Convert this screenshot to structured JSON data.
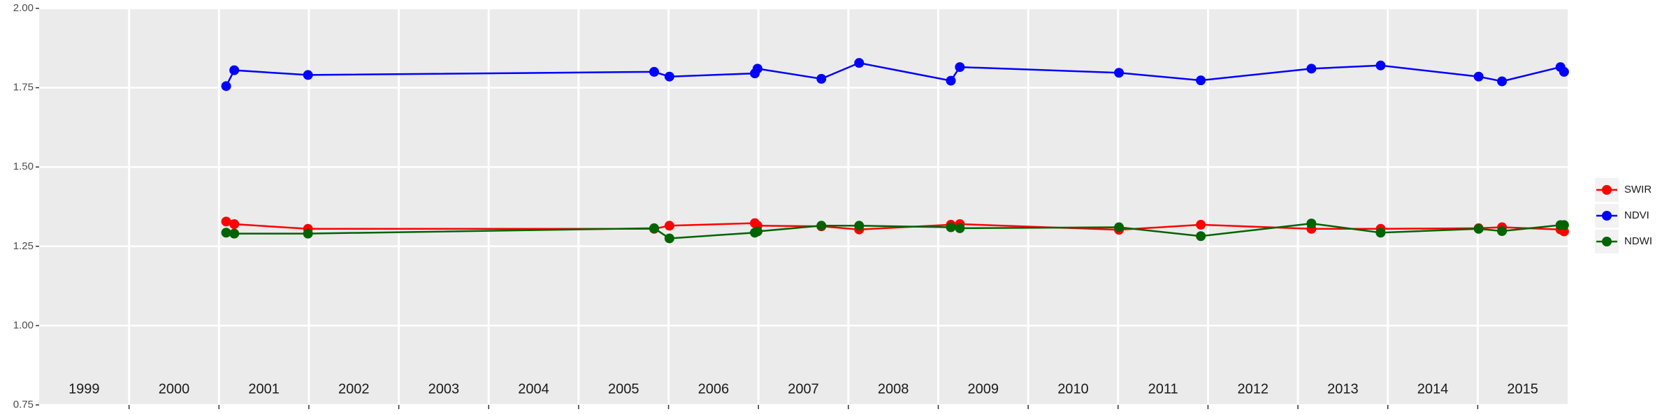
{
  "chart_data": {
    "type": "line",
    "x": [
      2001.08,
      2001.17,
      2001.99,
      2005.84,
      2006.01,
      2006.96,
      2006.99,
      2007.7,
      2008.12,
      2009.14,
      2009.24,
      2011.01,
      2011.92,
      2013.15,
      2013.92,
      2015.01,
      2015.27,
      2015.92,
      2015.96
    ],
    "series": [
      {
        "name": "SWIR",
        "color": "#ff0000",
        "values": [
          1.328,
          1.32,
          1.305,
          1.305,
          1.315,
          1.323,
          1.315,
          1.313,
          1.303,
          1.318,
          1.32,
          1.302,
          1.318,
          1.305,
          1.305,
          1.307,
          1.31,
          1.303,
          1.297
        ]
      },
      {
        "name": "NDVI",
        "color": "#0000ff",
        "values": [
          1.755,
          1.805,
          1.79,
          1.8,
          1.785,
          1.795,
          1.81,
          1.778,
          1.828,
          1.772,
          1.815,
          1.797,
          1.773,
          1.81,
          1.82,
          1.785,
          1.77,
          1.815,
          1.8
        ]
      },
      {
        "name": "NDWI",
        "color": "#006400",
        "values": [
          1.293,
          1.29,
          1.29,
          1.307,
          1.275,
          1.293,
          1.297,
          1.315,
          1.315,
          1.31,
          1.307,
          1.31,
          1.282,
          1.322,
          1.293,
          1.305,
          1.298,
          1.317,
          1.317
        ]
      }
    ],
    "year_labels": [
      "1999",
      "2000",
      "2001",
      "2002",
      "2003",
      "2004",
      "2005",
      "2006",
      "2007",
      "2008",
      "2009",
      "2010",
      "2011",
      "2012",
      "2013",
      "2014",
      "2015"
    ],
    "xlim": [
      1999,
      2016
    ],
    "xticks": [
      2000,
      2001,
      2002,
      2003,
      2004,
      2005,
      2006,
      2007,
      2008,
      2009,
      2010,
      2011,
      2012,
      2013,
      2014,
      2015
    ],
    "ylim": [
      0.75,
      2.0
    ],
    "yticks": [
      {
        "value": 0.75,
        "label": "0.75"
      },
      {
        "value": 1.0,
        "label": "1.00"
      },
      {
        "value": 1.25,
        "label": "1.25"
      },
      {
        "value": 1.5,
        "label": "1.50"
      },
      {
        "value": 1.75,
        "label": "1.75"
      },
      {
        "value": 2.0,
        "label": "2.00"
      }
    ],
    "grid": true,
    "legend": "right"
  }
}
